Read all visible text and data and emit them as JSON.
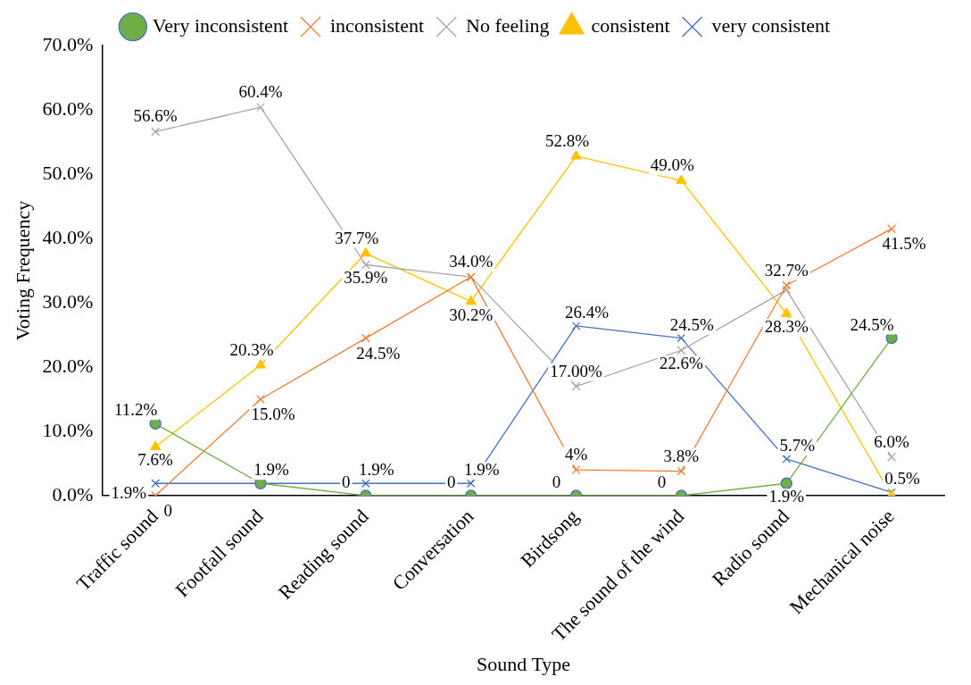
{
  "chart_data": {
    "type": "line",
    "xlabel": "Sound Type",
    "ylabel": "Voting Frequency",
    "categories": [
      "Traffic sound",
      "Footfall sound",
      "Reading sound",
      "Conversation",
      "Birdsong",
      "The sound of the wind",
      "Radio sound",
      "Mechanical noise"
    ],
    "ylim": [
      0,
      70
    ],
    "yticks": [
      {
        "value": 0,
        "label": "0.0%"
      },
      {
        "value": 10,
        "label": "10.0%"
      },
      {
        "value": 20,
        "label": "20.0%"
      },
      {
        "value": 30,
        "label": "30.0%"
      },
      {
        "value": 40,
        "label": "40.0%"
      },
      {
        "value": 50,
        "label": "50.0%"
      },
      {
        "value": 60,
        "label": "60.0%"
      },
      {
        "value": 70,
        "label": "70.0%"
      }
    ],
    "grid": false,
    "legend": "top",
    "line_style": "solid",
    "series": [
      {
        "name": "Very inconsistent",
        "color": "#70ad47",
        "marker": "circle",
        "values": [
          11.2,
          1.9,
          0,
          0,
          0,
          0,
          1.9,
          24.5
        ],
        "value_labels": [
          "11.2%",
          null,
          "0",
          "0",
          "0",
          "0",
          "1.9%",
          "24.5%"
        ]
      },
      {
        "name": "inconsistent",
        "color": "#ed7d31",
        "marker": "cross",
        "values": [
          0,
          15.0,
          24.5,
          34.0,
          4,
          3.8,
          32.7,
          41.5
        ],
        "value_labels": [
          "0",
          "15.0%",
          "24.5%",
          "34.0%",
          "4%",
          "3.8%",
          "32.7%",
          "41.5%"
        ]
      },
      {
        "name": "No feeling",
        "color": "#a5a5a5",
        "marker": "cross",
        "values": [
          56.6,
          60.4,
          35.9,
          34.0,
          17.0,
          22.6,
          32.0,
          6.0
        ],
        "value_labels": [
          "56.6%",
          "60.4%",
          "35.9%",
          null,
          "17.00%",
          "22.6%",
          null,
          "6.0%"
        ]
      },
      {
        "name": "consistent",
        "color": "#ffc000",
        "marker": "triangle",
        "values": [
          7.6,
          20.3,
          37.7,
          30.2,
          52.8,
          49.0,
          28.3,
          0
        ],
        "value_labels": [
          "7.6%",
          "20.3%",
          "37.7%",
          "30.2%",
          "52.8%",
          "49.0%",
          "28.3%",
          null
        ]
      },
      {
        "name": "very consistent",
        "color": "#4472c4",
        "marker": "cross",
        "values": [
          1.9,
          1.9,
          1.9,
          1.9,
          26.4,
          24.5,
          5.7,
          0.5
        ],
        "value_labels": [
          "1.9%",
          "1.9%",
          "1.9%",
          "1.9%",
          "26.4%",
          "24.5%",
          "5.7%",
          "0.5%"
        ]
      }
    ]
  }
}
